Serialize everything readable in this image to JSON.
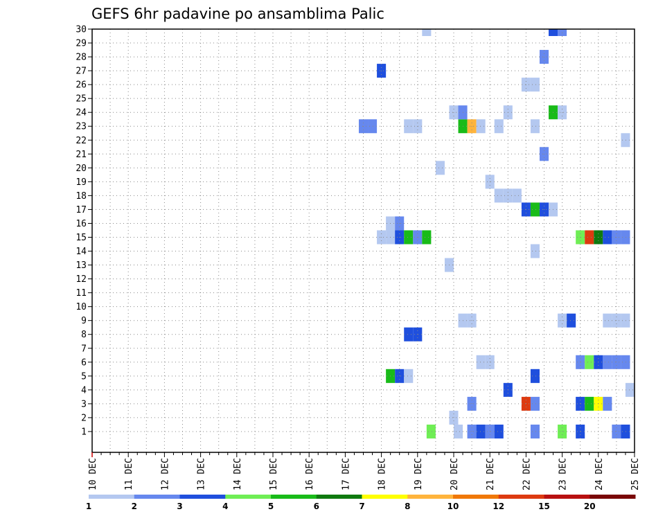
{
  "chart_data": {
    "type": "heatmap",
    "title": "GEFS 6hr padavine po ansamblima Palic",
    "xlabel": "",
    "ylabel": "",
    "x_tick_labels": [
      "10 DEC",
      "11 DEC",
      "12 DEC",
      "13 DEC",
      "14 DEC",
      "15 DEC",
      "16 DEC",
      "17 DEC",
      "18 DEC",
      "19 DEC",
      "20 DEC",
      "21 DEC",
      "22 DEC",
      "23 DEC",
      "24 DEC",
      "25 DEC"
    ],
    "y_tick_labels": [
      "1",
      "2",
      "3",
      "4",
      "5",
      "6",
      "7",
      "8",
      "9",
      "10",
      "11",
      "12",
      "13",
      "14",
      "15",
      "16",
      "17",
      "18",
      "19",
      "20",
      "21",
      "22",
      "23",
      "24",
      "25",
      "26",
      "27",
      "28",
      "29",
      "30"
    ],
    "x_unit": "6-hour step from 10 DEC 00Z",
    "xlim": [
      0,
      60
    ],
    "ylim": [
      0,
      30
    ],
    "grid": true,
    "legend": {
      "placement": "bottom",
      "colors": [
        "#b4c8f0",
        "#6688ee",
        "#1f4fdd",
        "#6fee55",
        "#19bb19",
        "#0f7a0f",
        "#ffff00",
        "#ffb43c",
        "#f07808",
        "#dd3a10",
        "#b81010",
        "#7a0808"
      ],
      "labels": [
        "1",
        "2",
        "3",
        "4",
        "5",
        "6",
        "7",
        "8",
        "10",
        "12",
        "15",
        "20"
      ]
    },
    "cells": [
      [
        37.5,
        1,
        4
      ],
      [
        40.5,
        1,
        1
      ],
      [
        42,
        1,
        2
      ],
      [
        43,
        1,
        3
      ],
      [
        44,
        1,
        2
      ],
      [
        45,
        1,
        3
      ],
      [
        49,
        1,
        2
      ],
      [
        52,
        1,
        4
      ],
      [
        54,
        1,
        3
      ],
      [
        58,
        1,
        2
      ],
      [
        59,
        1,
        3
      ],
      [
        40,
        2,
        1
      ],
      [
        42,
        3,
        2
      ],
      [
        48,
        3,
        10
      ],
      [
        49,
        3,
        2
      ],
      [
        54,
        3,
        3
      ],
      [
        55,
        3,
        5
      ],
      [
        56,
        3,
        7
      ],
      [
        57,
        3,
        2
      ],
      [
        46,
        4,
        3
      ],
      [
        59.5,
        4,
        1
      ],
      [
        33,
        5,
        5
      ],
      [
        34,
        5,
        3
      ],
      [
        35,
        5,
        1
      ],
      [
        49,
        5,
        3
      ],
      [
        43,
        6,
        1
      ],
      [
        44,
        6,
        1
      ],
      [
        54,
        6,
        2
      ],
      [
        55,
        6,
        4
      ],
      [
        56,
        6,
        3
      ],
      [
        57,
        6,
        2
      ],
      [
        58,
        6,
        2
      ],
      [
        59,
        6,
        2
      ],
      [
        35,
        8,
        3
      ],
      [
        36,
        8,
        3
      ],
      [
        41,
        9,
        1
      ],
      [
        42,
        9,
        1
      ],
      [
        52,
        9,
        1
      ],
      [
        53,
        9,
        3
      ],
      [
        57,
        9,
        1
      ],
      [
        58,
        9,
        1
      ],
      [
        59,
        9,
        1
      ],
      [
        39.5,
        13,
        1
      ],
      [
        49,
        14,
        1
      ],
      [
        32,
        15,
        1
      ],
      [
        33,
        15,
        1
      ],
      [
        34,
        15,
        3
      ],
      [
        35,
        15,
        5
      ],
      [
        36,
        15,
        2
      ],
      [
        37,
        15,
        5
      ],
      [
        54,
        15,
        4
      ],
      [
        55,
        15,
        10
      ],
      [
        56,
        15,
        6
      ],
      [
        57,
        15,
        3
      ],
      [
        58,
        15,
        2
      ],
      [
        59,
        15,
        2
      ],
      [
        33,
        16,
        1
      ],
      [
        34,
        16,
        2
      ],
      [
        48,
        17,
        3
      ],
      [
        49,
        17,
        5
      ],
      [
        50,
        17,
        3
      ],
      [
        51,
        17,
        1
      ],
      [
        45,
        18,
        1
      ],
      [
        46,
        18,
        1
      ],
      [
        47,
        18,
        1
      ],
      [
        44,
        19,
        1
      ],
      [
        38.5,
        20,
        1
      ],
      [
        50,
        21,
        2
      ],
      [
        59,
        22,
        1
      ],
      [
        30,
        23,
        2
      ],
      [
        31,
        23,
        2
      ],
      [
        35,
        23,
        1
      ],
      [
        36,
        23,
        1
      ],
      [
        41,
        23,
        5
      ],
      [
        42,
        23,
        8
      ],
      [
        43,
        23,
        1
      ],
      [
        45,
        23,
        1
      ],
      [
        49,
        23,
        1
      ],
      [
        40,
        24,
        1
      ],
      [
        41,
        24,
        2
      ],
      [
        46,
        24,
        1
      ],
      [
        51,
        24,
        5
      ],
      [
        52,
        24,
        1
      ],
      [
        48,
        26,
        1
      ],
      [
        49,
        26,
        1
      ],
      [
        32,
        27,
        3
      ],
      [
        50,
        28,
        2
      ],
      [
        37,
        30,
        1
      ],
      [
        51,
        30,
        3
      ],
      [
        52,
        30,
        2
      ]
    ]
  }
}
